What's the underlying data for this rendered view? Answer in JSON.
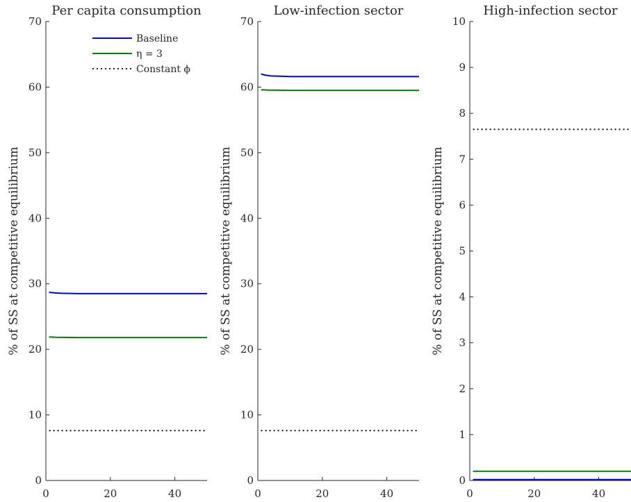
{
  "chart_data": [
    {
      "type": "line",
      "title": "Per capita consumption",
      "ylabel": "% of SS at competitive equilibrium",
      "xlim": [
        0,
        50
      ],
      "ylim": [
        0,
        70
      ],
      "xticks": [
        0,
        20,
        40
      ],
      "yticks": [
        0,
        10,
        20,
        30,
        40,
        50,
        60,
        70
      ],
      "legend": [
        "Baseline",
        "η = 3",
        "Constant ϕ"
      ],
      "legend_position": "top-right",
      "series": [
        {
          "name": "Baseline",
          "color": "#0000ff",
          "style": "solid",
          "x": [
            1,
            3,
            5,
            10,
            20,
            30,
            40,
            50
          ],
          "y": [
            28.7,
            28.6,
            28.55,
            28.5,
            28.5,
            28.5,
            28.5,
            28.5
          ]
        },
        {
          "name": "η = 3",
          "color": "#008000",
          "style": "solid",
          "x": [
            1,
            3,
            10,
            20,
            30,
            40,
            50
          ],
          "y": [
            21.9,
            21.85,
            21.8,
            21.8,
            21.8,
            21.8,
            21.8
          ]
        },
        {
          "name": "Constant ϕ",
          "color": "#000000",
          "style": "dotted",
          "x": [
            1,
            10,
            20,
            30,
            40,
            50
          ],
          "y": [
            7.6,
            7.6,
            7.6,
            7.6,
            7.6,
            7.6
          ]
        }
      ]
    },
    {
      "type": "line",
      "title": "Low-infection sector",
      "ylabel": "% of SS at competitive equilibrium",
      "xlim": [
        0,
        50
      ],
      "ylim": [
        0,
        70
      ],
      "xticks": [
        0,
        20,
        40
      ],
      "yticks": [
        0,
        10,
        20,
        30,
        40,
        50,
        60,
        70
      ],
      "series": [
        {
          "name": "Baseline",
          "color": "#0000ff",
          "style": "solid",
          "x": [
            1,
            2,
            4,
            7,
            10,
            20,
            30,
            40,
            50
          ],
          "y": [
            62.0,
            61.85,
            61.7,
            61.65,
            61.6,
            61.6,
            61.6,
            61.6,
            61.6
          ]
        },
        {
          "name": "η = 3",
          "color": "#008000",
          "style": "solid",
          "x": [
            1,
            3,
            10,
            20,
            30,
            40,
            50
          ],
          "y": [
            59.6,
            59.55,
            59.5,
            59.5,
            59.5,
            59.5,
            59.5
          ]
        },
        {
          "name": "Constant ϕ",
          "color": "#000000",
          "style": "dotted",
          "x": [
            1,
            10,
            20,
            30,
            40,
            50
          ],
          "y": [
            7.6,
            7.6,
            7.6,
            7.6,
            7.6,
            7.6
          ]
        }
      ]
    },
    {
      "type": "line",
      "title": "High-infection sector",
      "ylabel": "% of SS at competitive equilibrium",
      "xlim": [
        0,
        50
      ],
      "ylim": [
        0,
        10
      ],
      "xticks": [
        0,
        20,
        40
      ],
      "yticks": [
        0,
        1,
        2,
        3,
        4,
        5,
        6,
        7,
        8,
        9,
        10
      ],
      "series": [
        {
          "name": "Baseline",
          "color": "#0000ff",
          "style": "solid",
          "x": [
            1,
            10,
            20,
            30,
            40,
            50
          ],
          "y": [
            0.02,
            0.02,
            0.02,
            0.02,
            0.02,
            0.02
          ]
        },
        {
          "name": "η = 3",
          "color": "#008000",
          "style": "solid",
          "x": [
            1,
            10,
            20,
            30,
            40,
            50
          ],
          "y": [
            0.2,
            0.2,
            0.2,
            0.2,
            0.2,
            0.2
          ]
        },
        {
          "name": "Constant ϕ",
          "color": "#000000",
          "style": "dotted",
          "x": [
            1,
            10,
            20,
            30,
            40,
            50
          ],
          "y": [
            7.65,
            7.65,
            7.65,
            7.65,
            7.65,
            7.65
          ]
        }
      ]
    }
  ]
}
